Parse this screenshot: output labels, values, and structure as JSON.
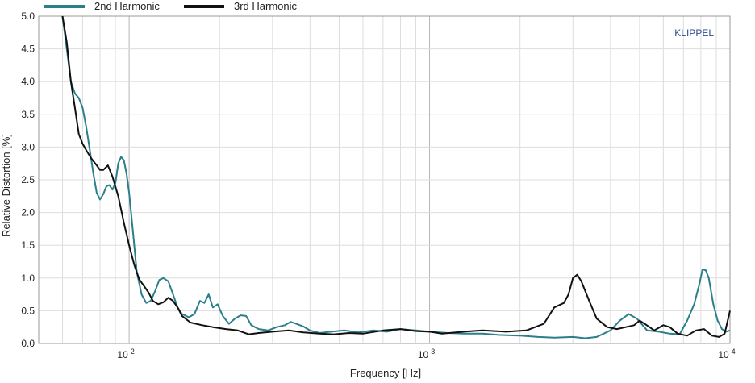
{
  "chart_data": {
    "type": "line",
    "title": "",
    "xlabel": "Frequency  [Hz]",
    "ylabel": "Relative Distortion  [%]",
    "x_scale": "log",
    "xlim": [
      50,
      10000
    ],
    "ylim": [
      0,
      5
    ],
    "grid": true,
    "legend_position": "top-left",
    "watermark": "KLIPPEL",
    "watermark_color": "#2e4a8a",
    "y_ticks": [
      "0.0",
      "0.5",
      "1.0",
      "1.5",
      "2.0",
      "2.5",
      "3.0",
      "3.5",
      "4.0",
      "4.5",
      "5.0"
    ],
    "x_ticks": [
      {
        "value": 100,
        "base": "10",
        "exp": "2"
      },
      {
        "value": 1000,
        "base": "10",
        "exp": "3"
      },
      {
        "value": 10000,
        "base": "10",
        "exp": "4"
      }
    ],
    "series": [
      {
        "name": "2nd Harmonic",
        "color": "#2a7f8a",
        "points": [
          [
            60,
            5.0
          ],
          [
            62,
            4.5
          ],
          [
            64,
            4.0
          ],
          [
            66,
            3.82
          ],
          [
            68,
            3.75
          ],
          [
            70,
            3.6
          ],
          [
            72,
            3.3
          ],
          [
            74,
            2.95
          ],
          [
            76,
            2.6
          ],
          [
            78,
            2.3
          ],
          [
            80,
            2.2
          ],
          [
            82,
            2.28
          ],
          [
            84,
            2.4
          ],
          [
            86,
            2.42
          ],
          [
            88,
            2.35
          ],
          [
            90,
            2.45
          ],
          [
            92,
            2.75
          ],
          [
            94,
            2.85
          ],
          [
            96,
            2.8
          ],
          [
            98,
            2.6
          ],
          [
            100,
            2.3
          ],
          [
            103,
            1.7
          ],
          [
            106,
            1.1
          ],
          [
            110,
            0.75
          ],
          [
            114,
            0.62
          ],
          [
            118,
            0.65
          ],
          [
            122,
            0.8
          ],
          [
            126,
            0.97
          ],
          [
            130,
            1.0
          ],
          [
            135,
            0.95
          ],
          [
            140,
            0.75
          ],
          [
            145,
            0.55
          ],
          [
            150,
            0.45
          ],
          [
            158,
            0.4
          ],
          [
            165,
            0.45
          ],
          [
            172,
            0.65
          ],
          [
            178,
            0.62
          ],
          [
            184,
            0.75
          ],
          [
            190,
            0.55
          ],
          [
            197,
            0.6
          ],
          [
            205,
            0.42
          ],
          [
            215,
            0.3
          ],
          [
            225,
            0.38
          ],
          [
            235,
            0.43
          ],
          [
            245,
            0.42
          ],
          [
            255,
            0.28
          ],
          [
            270,
            0.22
          ],
          [
            290,
            0.2
          ],
          [
            310,
            0.25
          ],
          [
            330,
            0.28
          ],
          [
            345,
            0.33
          ],
          [
            360,
            0.3
          ],
          [
            380,
            0.26
          ],
          [
            400,
            0.2
          ],
          [
            430,
            0.16
          ],
          [
            470,
            0.18
          ],
          [
            520,
            0.2
          ],
          [
            580,
            0.17
          ],
          [
            650,
            0.2
          ],
          [
            720,
            0.18
          ],
          [
            800,
            0.22
          ],
          [
            900,
            0.2
          ],
          [
            1000,
            0.18
          ],
          [
            1150,
            0.16
          ],
          [
            1300,
            0.15
          ],
          [
            1500,
            0.15
          ],
          [
            1700,
            0.13
          ],
          [
            2000,
            0.12
          ],
          [
            2300,
            0.1
          ],
          [
            2600,
            0.09
          ],
          [
            3000,
            0.1
          ],
          [
            3300,
            0.08
          ],
          [
            3600,
            0.1
          ],
          [
            4000,
            0.2
          ],
          [
            4300,
            0.35
          ],
          [
            4600,
            0.45
          ],
          [
            4900,
            0.38
          ],
          [
            5300,
            0.2
          ],
          [
            5800,
            0.18
          ],
          [
            6300,
            0.15
          ],
          [
            6800,
            0.14
          ],
          [
            7200,
            0.35
          ],
          [
            7600,
            0.6
          ],
          [
            7900,
            0.9
          ],
          [
            8100,
            1.13
          ],
          [
            8300,
            1.12
          ],
          [
            8500,
            1.0
          ],
          [
            8800,
            0.6
          ],
          [
            9100,
            0.35
          ],
          [
            9400,
            0.22
          ],
          [
            9700,
            0.18
          ],
          [
            10000,
            0.2
          ]
        ]
      },
      {
        "name": "3rd Harmonic",
        "color": "#111111",
        "points": [
          [
            60,
            5.0
          ],
          [
            62,
            4.6
          ],
          [
            64,
            4.0
          ],
          [
            66,
            3.6
          ],
          [
            68,
            3.2
          ],
          [
            70,
            3.05
          ],
          [
            72,
            2.95
          ],
          [
            75,
            2.82
          ],
          [
            78,
            2.72
          ],
          [
            80,
            2.65
          ],
          [
            82,
            2.65
          ],
          [
            85,
            2.72
          ],
          [
            88,
            2.55
          ],
          [
            92,
            2.25
          ],
          [
            96,
            1.85
          ],
          [
            100,
            1.5
          ],
          [
            104,
            1.2
          ],
          [
            108,
            0.98
          ],
          [
            112,
            0.88
          ],
          [
            116,
            0.78
          ],
          [
            120,
            0.65
          ],
          [
            125,
            0.6
          ],
          [
            130,
            0.63
          ],
          [
            135,
            0.7
          ],
          [
            140,
            0.65
          ],
          [
            145,
            0.55
          ],
          [
            150,
            0.42
          ],
          [
            160,
            0.32
          ],
          [
            175,
            0.28
          ],
          [
            190,
            0.25
          ],
          [
            210,
            0.22
          ],
          [
            230,
            0.2
          ],
          [
            250,
            0.14
          ],
          [
            270,
            0.16
          ],
          [
            300,
            0.18
          ],
          [
            340,
            0.2
          ],
          [
            380,
            0.17
          ],
          [
            430,
            0.15
          ],
          [
            480,
            0.14
          ],
          [
            540,
            0.16
          ],
          [
            600,
            0.15
          ],
          [
            700,
            0.2
          ],
          [
            800,
            0.22
          ],
          [
            900,
            0.19
          ],
          [
            1000,
            0.18
          ],
          [
            1100,
            0.15
          ],
          [
            1300,
            0.18
          ],
          [
            1500,
            0.2
          ],
          [
            1800,
            0.18
          ],
          [
            2100,
            0.2
          ],
          [
            2400,
            0.3
          ],
          [
            2600,
            0.55
          ],
          [
            2800,
            0.62
          ],
          [
            2900,
            0.75
          ],
          [
            3000,
            1.0
          ],
          [
            3100,
            1.05
          ],
          [
            3200,
            0.95
          ],
          [
            3400,
            0.65
          ],
          [
            3600,
            0.38
          ],
          [
            3900,
            0.25
          ],
          [
            4200,
            0.22
          ],
          [
            4500,
            0.25
          ],
          [
            4800,
            0.28
          ],
          [
            5000,
            0.35
          ],
          [
            5200,
            0.3
          ],
          [
            5600,
            0.2
          ],
          [
            6000,
            0.28
          ],
          [
            6300,
            0.25
          ],
          [
            6700,
            0.15
          ],
          [
            7200,
            0.12
          ],
          [
            7700,
            0.2
          ],
          [
            8200,
            0.22
          ],
          [
            8700,
            0.12
          ],
          [
            9200,
            0.1
          ],
          [
            9600,
            0.15
          ],
          [
            10000,
            0.5
          ]
        ]
      }
    ]
  }
}
